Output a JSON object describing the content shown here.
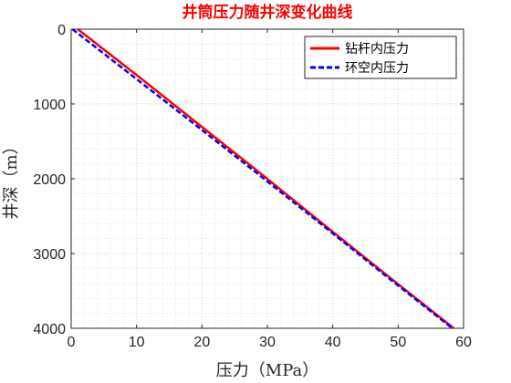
{
  "chart_data": {
    "type": "line",
    "title": "井筒压力随井深变化曲线",
    "title_color": "#ff0000",
    "xlabel": "压力（MPa）",
    "ylabel": "井深（m）",
    "xlim": [
      0,
      60
    ],
    "ylim": [
      0,
      4000
    ],
    "y_reversed": true,
    "x_ticks": [
      0,
      10,
      20,
      30,
      40,
      50,
      60
    ],
    "y_ticks": [
      0,
      1000,
      2000,
      3000,
      4000
    ],
    "grid": "major and minor, dotted",
    "legend_position": "top-right",
    "series": [
      {
        "name": "钻杆内压力",
        "color": "#ff0000",
        "style": "solid",
        "points": [
          [
            1.0,
            0
          ],
          [
            10.4,
            640
          ],
          [
            19.9,
            1300
          ],
          [
            29.4,
            1960
          ],
          [
            39.0,
            2640
          ],
          [
            48.7,
            3320
          ],
          [
            58.5,
            4000
          ]
        ]
      },
      {
        "name": "环空内压力",
        "color": "#0000ff",
        "style": "dashed",
        "points": [
          [
            0.2,
            0
          ],
          [
            9.6,
            640
          ],
          [
            19.3,
            1300
          ],
          [
            28.9,
            1960
          ],
          [
            38.7,
            2640
          ],
          [
            48.4,
            3320
          ],
          [
            58.3,
            4000
          ]
        ]
      }
    ]
  }
}
